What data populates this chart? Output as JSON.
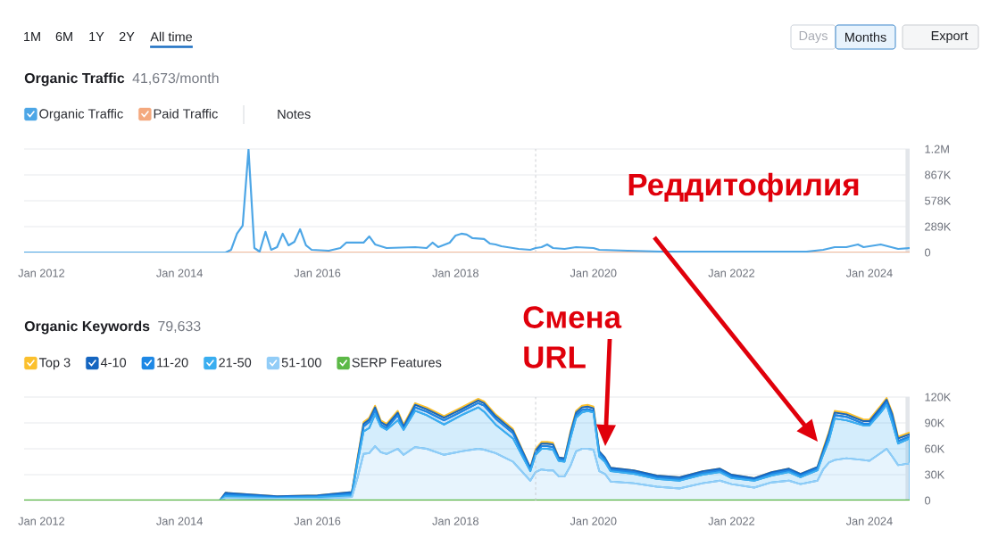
{
  "chart_data": [
    {
      "type": "line",
      "title": "Organic Traffic",
      "subtitle": "41,673/month",
      "x": [
        "2011-10",
        "2014-09",
        "2014-10",
        "2014-11",
        "2014-12",
        "2015-01",
        "2015-02",
        "2015-03",
        "2015-04",
        "2015-05",
        "2015-06",
        "2015-07",
        "2015-08",
        "2015-09",
        "2015-10",
        "2015-11",
        "2015-12",
        "2016-03",
        "2016-05",
        "2016-06",
        "2016-09",
        "2016-10",
        "2016-11",
        "2017-01",
        "2017-06",
        "2017-08",
        "2017-09",
        "2017-10",
        "2017-12",
        "2018-01",
        "2018-02",
        "2018-03",
        "2018-04",
        "2018-06",
        "2018-07",
        "2018-08",
        "2018-09",
        "2018-12",
        "2019-02",
        "2019-03",
        "2019-04",
        "2019-05",
        "2019-06",
        "2019-08",
        "2019-10",
        "2020-01",
        "2020-02",
        "2020-07",
        "2021-01",
        "2022-11",
        "2023-02",
        "2023-05",
        "2023-07",
        "2023-09",
        "2023-11",
        "2023-12",
        "2024-03",
        "2024-06",
        "2024-08"
      ],
      "series": [
        {
          "name": "Organic Traffic",
          "color": "#4da6e6",
          "values": [
            0,
            0,
            30000,
            210000,
            300000,
            1150000,
            50000,
            10000,
            230000,
            30000,
            60000,
            210000,
            80000,
            120000,
            260000,
            80000,
            30000,
            20000,
            50000,
            110000,
            110000,
            180000,
            90000,
            50000,
            60000,
            50000,
            110000,
            60000,
            110000,
            190000,
            210000,
            200000,
            160000,
            150000,
            100000,
            90000,
            70000,
            40000,
            30000,
            50000,
            60000,
            90000,
            50000,
            40000,
            60000,
            50000,
            30000,
            20000,
            10000,
            10000,
            10000,
            30000,
            60000,
            60000,
            90000,
            60000,
            90000,
            40000,
            50000
          ]
        },
        {
          "name": "Paid Traffic",
          "color": "#f4a97e",
          "x": [
            "2011-10",
            "2024-08"
          ],
          "values": [
            0,
            0
          ]
        }
      ],
      "xlim": [
        "2011-10",
        "2024-08"
      ],
      "xticks": [
        {
          "value": "2012-01",
          "label": "Jan 2012"
        },
        {
          "value": "2014-01",
          "label": "Jan 2014"
        },
        {
          "value": "2016-01",
          "label": "Jan 2016"
        },
        {
          "value": "2018-01",
          "label": "Jan 2018"
        },
        {
          "value": "2020-01",
          "label": "Jan 2020"
        },
        {
          "value": "2022-01",
          "label": "Jan 2022"
        },
        {
          "value": "2024-01",
          "label": "Jan 2024"
        }
      ],
      "ylim": [
        0,
        1156000
      ],
      "yticks": [
        0,
        {
          "value": 289000,
          "label": "289K"
        },
        {
          "value": 578000,
          "label": "578K"
        },
        {
          "value": 867000,
          "label": "867K"
        },
        {
          "value": 1156000,
          "label": "1.2M"
        }
      ],
      "grid": "y",
      "legend": "top left",
      "ref_lines": [
        {
          "axis": "x",
          "value": "2019-03",
          "color": "#c6c9ce",
          "line_style": "dashed"
        }
      ],
      "bands": [
        {
          "axis": "x",
          "from": "2024-07-10",
          "to": "2024-08",
          "color": "#e3e6ea"
        }
      ],
      "annotations": [
        "1M",
        "6M",
        "1Y",
        "2Y",
        "All time",
        "Days",
        "Months",
        "Export",
        "Notes"
      ]
    },
    {
      "type": "area",
      "stacked": true,
      "title": "Organic Keywords",
      "subtitle": "79,633",
      "x": [
        "2011-10",
        "2014-08",
        "2014-09",
        "2015-06",
        "2016-01",
        "2016-07",
        "2016-08",
        "2016-09",
        "2016-10",
        "2016-11",
        "2016-12",
        "2017-01",
        "2017-03",
        "2017-04",
        "2017-06",
        "2017-08",
        "2017-11",
        "2018-02",
        "2018-05",
        "2018-06",
        "2018-08",
        "2018-11",
        "2019-02",
        "2019-03",
        "2019-04",
        "2019-05",
        "2019-06",
        "2019-07",
        "2019-08",
        "2019-09",
        "2019-10",
        "2019-11",
        "2019-12",
        "2020-01",
        "2020-02",
        "2020-03",
        "2020-04",
        "2020-08",
        "2020-12",
        "2021-04",
        "2021-08",
        "2021-11",
        "2022-01",
        "2022-05",
        "2022-08",
        "2022-11",
        "2023-01",
        "2023-04",
        "2023-05",
        "2023-06",
        "2023-07",
        "2023-09",
        "2023-12",
        "2024-01",
        "2024-03",
        "2024-04",
        "2024-05",
        "2024-06",
        "2024-08"
      ],
      "series": [
        {
          "name": "51-100",
          "color": "#92cdf7",
          "values": [
            0,
            0,
            3000,
            2000,
            2000,
            4000,
            27000,
            54000,
            55000,
            63000,
            56000,
            54000,
            60000,
            53000,
            62000,
            60000,
            53000,
            57000,
            60000,
            59000,
            55000,
            45000,
            23000,
            33000,
            36000,
            35000,
            35000,
            28000,
            28000,
            40000,
            57000,
            60000,
            60000,
            59000,
            34000,
            31000,
            22000,
            20000,
            16000,
            14000,
            20000,
            23000,
            19000,
            15000,
            21000,
            23000,
            19000,
            23000,
            36000,
            44000,
            47000,
            49000,
            47000,
            46000,
            55000,
            60000,
            51000,
            41000,
            43000
          ]
        },
        {
          "name": "21-50",
          "color": "#3aaef0",
          "values": [
            0,
            0,
            2000,
            1000,
            2000,
            2000,
            18000,
            26000,
            29000,
            37000,
            30000,
            28000,
            33000,
            29000,
            42000,
            39000,
            35000,
            42000,
            48000,
            44000,
            33000,
            27000,
            11000,
            20000,
            24000,
            25000,
            24000,
            18000,
            17000,
            32000,
            39000,
            42000,
            44000,
            43000,
            17000,
            14000,
            12000,
            11000,
            9000,
            9000,
            10000,
            10000,
            7000,
            8000,
            8000,
            10000,
            8000,
            12000,
            17000,
            26000,
            48000,
            44000,
            40000,
            41000,
            47000,
            51000,
            39000,
            25000,
            29000
          ]
        },
        {
          "name": "11-20",
          "color": "#1e88e5",
          "values": [
            0,
            0,
            2000,
            1000,
            1000,
            2000,
            2000,
            6000,
            7000,
            5000,
            2000,
            2000,
            6000,
            1000,
            4000,
            4000,
            5000,
            4000,
            5000,
            7000,
            7000,
            6000,
            2000,
            2000,
            3000,
            3000,
            3000,
            2000,
            2000,
            3000,
            3000,
            3000,
            2000,
            2000,
            4000,
            3000,
            2000,
            2000,
            2000,
            2000,
            2000,
            2000,
            2000,
            1000,
            2000,
            2000,
            2000,
            2000,
            2000,
            5000,
            4000,
            4000,
            2000,
            2000,
            3000,
            3000,
            7000,
            3000,
            2000
          ]
        },
        {
          "name": "4-10",
          "color": "#1565c0",
          "values": [
            0,
            0,
            2000,
            1000,
            1000,
            2000,
            2000,
            3000,
            3000,
            3000,
            3000,
            3000,
            3000,
            3000,
            3000,
            3000,
            3000,
            3000,
            3000,
            3000,
            3000,
            3000,
            2000,
            3000,
            3000,
            3000,
            3000,
            2000,
            2000,
            3000,
            3000,
            3000,
            3000,
            3000,
            2000,
            2000,
            2000,
            2000,
            2000,
            2000,
            2000,
            2000,
            2000,
            2000,
            2000,
            2000,
            2000,
            2000,
            3000,
            3000,
            3000,
            3000,
            3000,
            3000,
            3000,
            3000,
            3000,
            3000,
            3000
          ]
        },
        {
          "name": "Top 3",
          "color": "#fbc02d",
          "values": [
            0,
            0,
            0,
            0,
            0,
            0,
            2000,
            2000,
            2000,
            2000,
            2000,
            2000,
            2000,
            2000,
            2000,
            2000,
            2000,
            2000,
            2000,
            2000,
            2000,
            2000,
            0,
            2000,
            2000,
            2000,
            2000,
            0,
            0,
            2000,
            2000,
            2000,
            2000,
            2000,
            0,
            0,
            0,
            0,
            0,
            0,
            0,
            0,
            0,
            0,
            0,
            0,
            0,
            0,
            2000,
            2000,
            2000,
            2000,
            2000,
            2000,
            2000,
            2000,
            2000,
            2000,
            2000
          ]
        },
        {
          "name": "SERP Features",
          "type": "line",
          "color": "#5cb947",
          "x": [
            "2011-10",
            "2024-08"
          ],
          "values": [
            0,
            0
          ]
        }
      ],
      "xlim": [
        "2011-10",
        "2024-08"
      ],
      "xticks": [
        {
          "value": "2012-01",
          "label": "Jan 2012"
        },
        {
          "value": "2014-01",
          "label": "Jan 2014"
        },
        {
          "value": "2016-01",
          "label": "Jan 2016"
        },
        {
          "value": "2018-01",
          "label": "Jan 2018"
        },
        {
          "value": "2020-01",
          "label": "Jan 2020"
        },
        {
          "value": "2022-01",
          "label": "Jan 2022"
        },
        {
          "value": "2024-01",
          "label": "Jan 2024"
        }
      ],
      "ylim": [
        0,
        120000
      ],
      "yticks": [
        0,
        {
          "value": 30000,
          "label": "30K"
        },
        {
          "value": 60000,
          "label": "60K"
        },
        {
          "value": 90000,
          "label": "90K"
        },
        {
          "value": 120000,
          "label": "120K"
        }
      ],
      "grid": "y",
      "legend": "top left",
      "ref_lines": [
        {
          "axis": "x",
          "value": "2019-03",
          "color": "#c6c9ce",
          "line_style": "dashed"
        }
      ],
      "bands": [
        {
          "axis": "x",
          "from": "2024-07-10",
          "to": "2024-08",
          "color": "#e3e6ea"
        }
      ],
      "annotations": [
        "Реддитофилия",
        "Смена URL"
      ]
    }
  ]
}
